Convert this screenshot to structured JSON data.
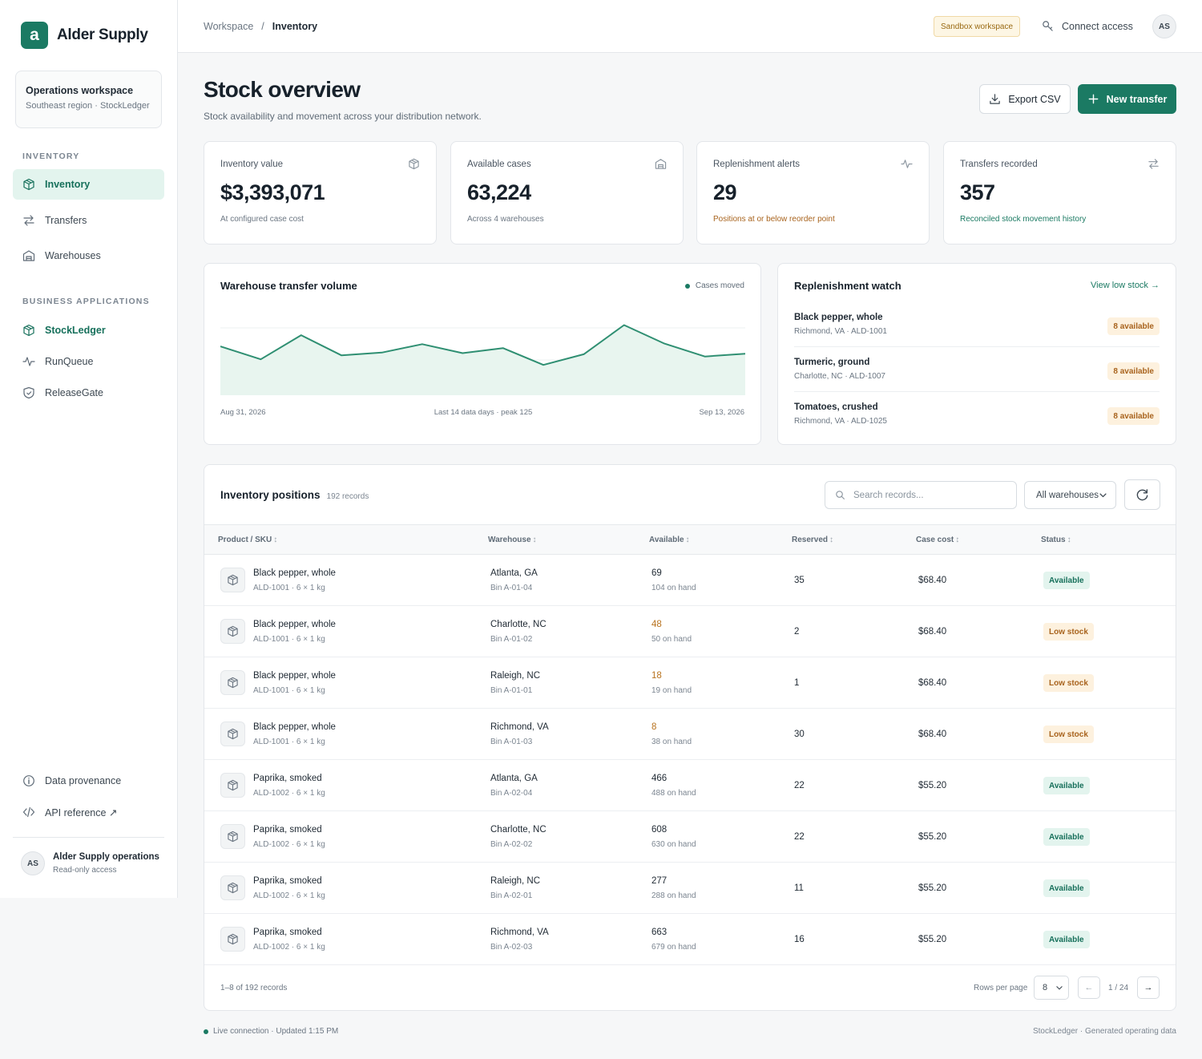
{
  "brand": {
    "logo_letter": "a",
    "name": "Alder Supply",
    "accent": "#1b7a63"
  },
  "workspace": {
    "title": "Operations workspace",
    "subtitle": "Southeast region · StockLedger"
  },
  "sidebar": {
    "section_inventory": "INVENTORY",
    "nav": [
      {
        "label": "Inventory",
        "icon": "package-icon",
        "active": true
      },
      {
        "label": "Transfers",
        "icon": "arrows-icon"
      },
      {
        "label": "Warehouses",
        "icon": "warehouse-icon"
      }
    ],
    "section_apps": "BUSINESS APPLICATIONS",
    "apps": [
      {
        "label": "StockLedger",
        "icon": "package-icon"
      },
      {
        "label": "RunQueue",
        "icon": "pulse-icon"
      },
      {
        "label": "ReleaseGate",
        "icon": "shield-icon"
      }
    ],
    "bottom": [
      {
        "label": "Data provenance",
        "icon": "info-icon"
      },
      {
        "label": "API reference ↗",
        "icon": "code-icon"
      }
    ],
    "user": {
      "initials": "AS",
      "name": "Alder Supply operations",
      "role": "Read-only access"
    }
  },
  "header": {
    "breadcrumb": [
      "Workspace",
      "/",
      "Inventory"
    ],
    "sandbox_badge": "Sandbox workspace",
    "connect_label": "Connect access",
    "avatar_initials": "AS"
  },
  "page": {
    "title": "Stock overview",
    "subtitle": "Stock availability and movement across your distribution network.",
    "export_label": "Export CSV",
    "new_label": "New transfer"
  },
  "stats": [
    {
      "label": "Inventory value",
      "value": "$3,393,071",
      "note": "At configured case cost",
      "icon": "package-icon",
      "tone": ""
    },
    {
      "label": "Available cases",
      "value": "63,224",
      "note": "Across 4 warehouses",
      "icon": "warehouse-icon",
      "tone": ""
    },
    {
      "label": "Replenishment alerts",
      "value": "29",
      "note": "Positions at or below reorder point",
      "icon": "pulse-icon",
      "tone": "warn"
    },
    {
      "label": "Transfers recorded",
      "value": "357",
      "note": "Reconciled stock movement history",
      "icon": "arrows-icon",
      "tone": "ok"
    }
  ],
  "chart_panel": {
    "title": "Warehouse transfer volume",
    "legend": "Cases moved",
    "x_start": "Aug 31, 2026",
    "x_mid": "Last 14 data days · peak 125",
    "x_end": "Sep 13, 2026"
  },
  "chart_data": {
    "type": "area",
    "x_label_start": "Aug 31, 2026",
    "x_label_end": "Sep 13, 2026",
    "series": [
      {
        "name": "Cases moved",
        "values": [
          87,
          64,
          107,
          71,
          76,
          91,
          75,
          84,
          54,
          73,
          125,
          92,
          69,
          74
        ]
      }
    ],
    "ylim": [
      0,
      140
    ],
    "peak": 125,
    "color": "#2f8f72",
    "fill": "#e8f5ef"
  },
  "watch": {
    "title": "Replenishment watch",
    "link": "View low stock →",
    "items": [
      {
        "name": "Black pepper, whole",
        "meta": "Richmond, VA · ALD-1001",
        "badge": "8 available"
      },
      {
        "name": "Turmeric, ground",
        "meta": "Charlotte, NC · ALD-1007",
        "badge": "8 available"
      },
      {
        "name": "Tomatoes, crushed",
        "meta": "Richmond, VA · ALD-1025",
        "badge": "8 available"
      }
    ]
  },
  "table": {
    "title": "Inventory positions",
    "count": "192 records",
    "search_placeholder": "Search records...",
    "warehouse_filter": "All warehouses",
    "columns": [
      "Product / SKU",
      "Warehouse",
      "Available",
      "Reserved",
      "Case cost",
      "Status"
    ],
    "rows": [
      {
        "product": "Black pepper, whole",
        "sku": "ALD-1001 · 6 × 1 kg",
        "warehouse": "Atlanta, GA",
        "bin": "Bin A-01-04",
        "available": "69",
        "on_hand": "104 on hand",
        "low": false,
        "reserved": "35",
        "cost": "$68.40",
        "status": "Available"
      },
      {
        "product": "Black pepper, whole",
        "sku": "ALD-1001 · 6 × 1 kg",
        "warehouse": "Charlotte, NC",
        "bin": "Bin A-01-02",
        "available": "48",
        "on_hand": "50 on hand",
        "low": true,
        "reserved": "2",
        "cost": "$68.40",
        "status": "Low stock"
      },
      {
        "product": "Black pepper, whole",
        "sku": "ALD-1001 · 6 × 1 kg",
        "warehouse": "Raleigh, NC",
        "bin": "Bin A-01-01",
        "available": "18",
        "on_hand": "19 on hand",
        "low": true,
        "reserved": "1",
        "cost": "$68.40",
        "status": "Low stock"
      },
      {
        "product": "Black pepper, whole",
        "sku": "ALD-1001 · 6 × 1 kg",
        "warehouse": "Richmond, VA",
        "bin": "Bin A-01-03",
        "available": "8",
        "on_hand": "38 on hand",
        "low": true,
        "reserved": "30",
        "cost": "$68.40",
        "status": "Low stock"
      },
      {
        "product": "Paprika, smoked",
        "sku": "ALD-1002 · 6 × 1 kg",
        "warehouse": "Atlanta, GA",
        "bin": "Bin A-02-04",
        "available": "466",
        "on_hand": "488 on hand",
        "low": false,
        "reserved": "22",
        "cost": "$55.20",
        "status": "Available"
      },
      {
        "product": "Paprika, smoked",
        "sku": "ALD-1002 · 6 × 1 kg",
        "warehouse": "Charlotte, NC",
        "bin": "Bin A-02-02",
        "available": "608",
        "on_hand": "630 on hand",
        "low": false,
        "reserved": "22",
        "cost": "$55.20",
        "status": "Available"
      },
      {
        "product": "Paprika, smoked",
        "sku": "ALD-1002 · 6 × 1 kg",
        "warehouse": "Raleigh, NC",
        "bin": "Bin A-02-01",
        "available": "277",
        "on_hand": "288 on hand",
        "low": false,
        "reserved": "11",
        "cost": "$55.20",
        "status": "Available"
      },
      {
        "product": "Paprika, smoked",
        "sku": "ALD-1002 · 6 × 1 kg",
        "warehouse": "Richmond, VA",
        "bin": "Bin A-02-03",
        "available": "663",
        "on_hand": "679 on hand",
        "low": false,
        "reserved": "16",
        "cost": "$55.20",
        "status": "Available"
      }
    ],
    "range_text": "1–8 of 192 records",
    "rows_per_page_label": "Rows per page",
    "rows_per_page": "8",
    "prev": "←",
    "page_text": "1 / 24",
    "next": "→"
  },
  "footer": {
    "status": "Live connection · Updated 1:15 PM",
    "right": "StockLedger · Generated operating data"
  }
}
